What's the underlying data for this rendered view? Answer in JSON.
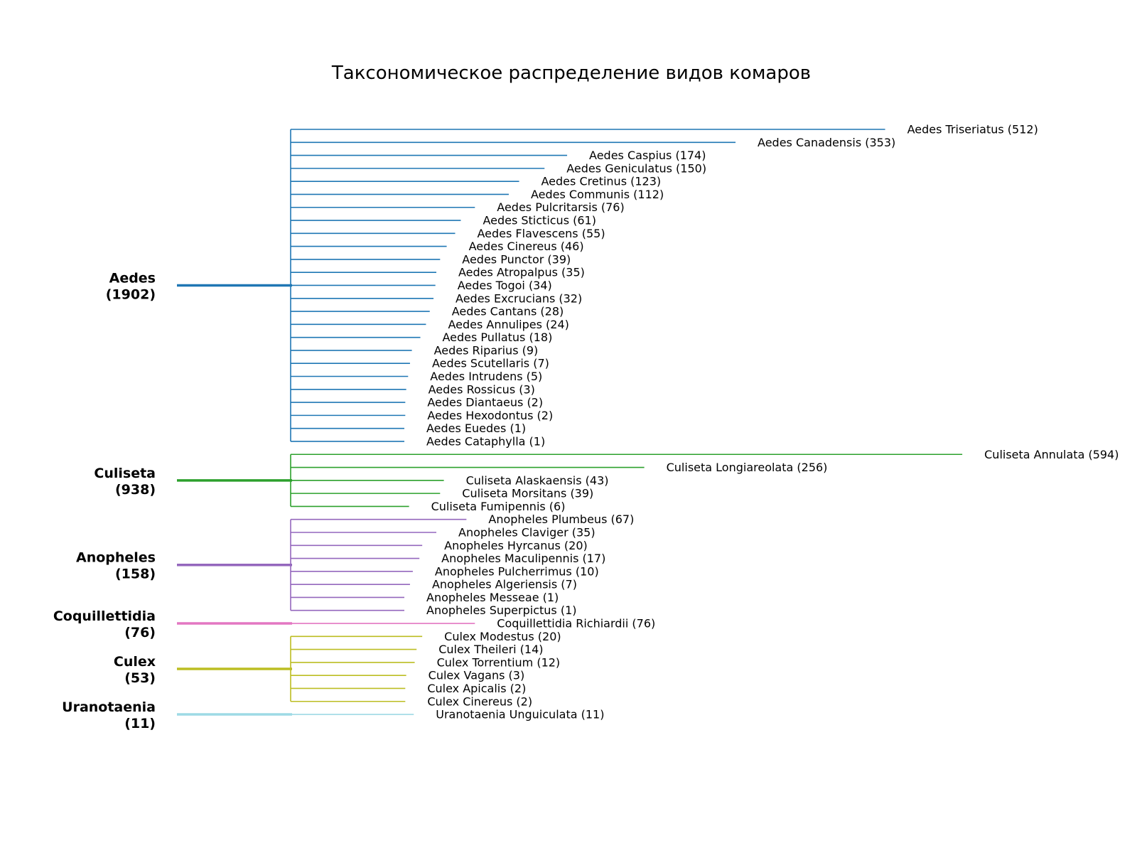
{
  "title": "Таксономическое распределение видов комаров",
  "chart_data": {
    "type": "tree",
    "title": "Таксономическое распределение видов комаров",
    "genera": [
      {
        "name": "Aedes",
        "total": 1902,
        "color": "#1f77b4",
        "species": [
          {
            "name": "Aedes Triseriatus",
            "count": 512
          },
          {
            "name": "Aedes Canadensis",
            "count": 353
          },
          {
            "name": "Aedes Caspius",
            "count": 174
          },
          {
            "name": "Aedes Geniculatus",
            "count": 150
          },
          {
            "name": "Aedes Cretinus",
            "count": 123
          },
          {
            "name": "Aedes Communis",
            "count": 112
          },
          {
            "name": "Aedes Pulcritarsis",
            "count": 76
          },
          {
            "name": "Aedes Sticticus",
            "count": 61
          },
          {
            "name": "Aedes Flavescens",
            "count": 55
          },
          {
            "name": "Aedes Cinereus",
            "count": 46
          },
          {
            "name": "Aedes Punctor",
            "count": 39
          },
          {
            "name": "Aedes Atropalpus",
            "count": 35
          },
          {
            "name": "Aedes Togoi",
            "count": 34
          },
          {
            "name": "Aedes Excrucians",
            "count": 32
          },
          {
            "name": "Aedes Cantans",
            "count": 28
          },
          {
            "name": "Aedes Annulipes",
            "count": 24
          },
          {
            "name": "Aedes Pullatus",
            "count": 18
          },
          {
            "name": "Aedes Riparius",
            "count": 9
          },
          {
            "name": "Aedes Scutellaris",
            "count": 7
          },
          {
            "name": "Aedes Intrudens",
            "count": 5
          },
          {
            "name": "Aedes Rossicus",
            "count": 3
          },
          {
            "name": "Aedes Diantaeus",
            "count": 2
          },
          {
            "name": "Aedes Hexodontus",
            "count": 2
          },
          {
            "name": "Aedes Euedes",
            "count": 1
          },
          {
            "name": "Aedes Cataphylla",
            "count": 1
          }
        ]
      },
      {
        "name": "Culiseta",
        "total": 938,
        "color": "#2ca02c",
        "species": [
          {
            "name": "Culiseta Annulata",
            "count": 594
          },
          {
            "name": "Culiseta Longiareolata",
            "count": 256
          },
          {
            "name": "Culiseta Alaskaensis",
            "count": 43
          },
          {
            "name": "Culiseta Morsitans",
            "count": 39
          },
          {
            "name": "Culiseta Fumipennis",
            "count": 6
          }
        ]
      },
      {
        "name": "Anopheles",
        "total": 158,
        "color": "#9467bd",
        "species": [
          {
            "name": "Anopheles Plumbeus",
            "count": 67
          },
          {
            "name": "Anopheles Claviger",
            "count": 35
          },
          {
            "name": "Anopheles Hyrcanus",
            "count": 20
          },
          {
            "name": "Anopheles Maculipennis",
            "count": 17
          },
          {
            "name": "Anopheles Pulcherrimus",
            "count": 10
          },
          {
            "name": "Anopheles Algeriensis",
            "count": 7
          },
          {
            "name": "Anopheles Messeae",
            "count": 1
          },
          {
            "name": "Anopheles Superpictus",
            "count": 1
          }
        ]
      },
      {
        "name": "Coquillettidia",
        "total": 76,
        "color": "#e377c2",
        "species": [
          {
            "name": "Coquillettidia Richiardii",
            "count": 76
          }
        ]
      },
      {
        "name": "Culex",
        "total": 53,
        "color": "#bcbd22",
        "species": [
          {
            "name": "Culex Modestus",
            "count": 20
          },
          {
            "name": "Culex Theileri",
            "count": 14
          },
          {
            "name": "Culex Torrentium",
            "count": 12
          },
          {
            "name": "Culex Vagans",
            "count": 3
          },
          {
            "name": "Culex Apicalis",
            "count": 2
          },
          {
            "name": "Culex Cinereus",
            "count": 2
          }
        ]
      },
      {
        "name": "Uranotaenia",
        "total": 11,
        "color": "#9edae5",
        "species": [
          {
            "name": "Uranotaenia Unguiculata",
            "count": 11
          }
        ]
      }
    ]
  }
}
